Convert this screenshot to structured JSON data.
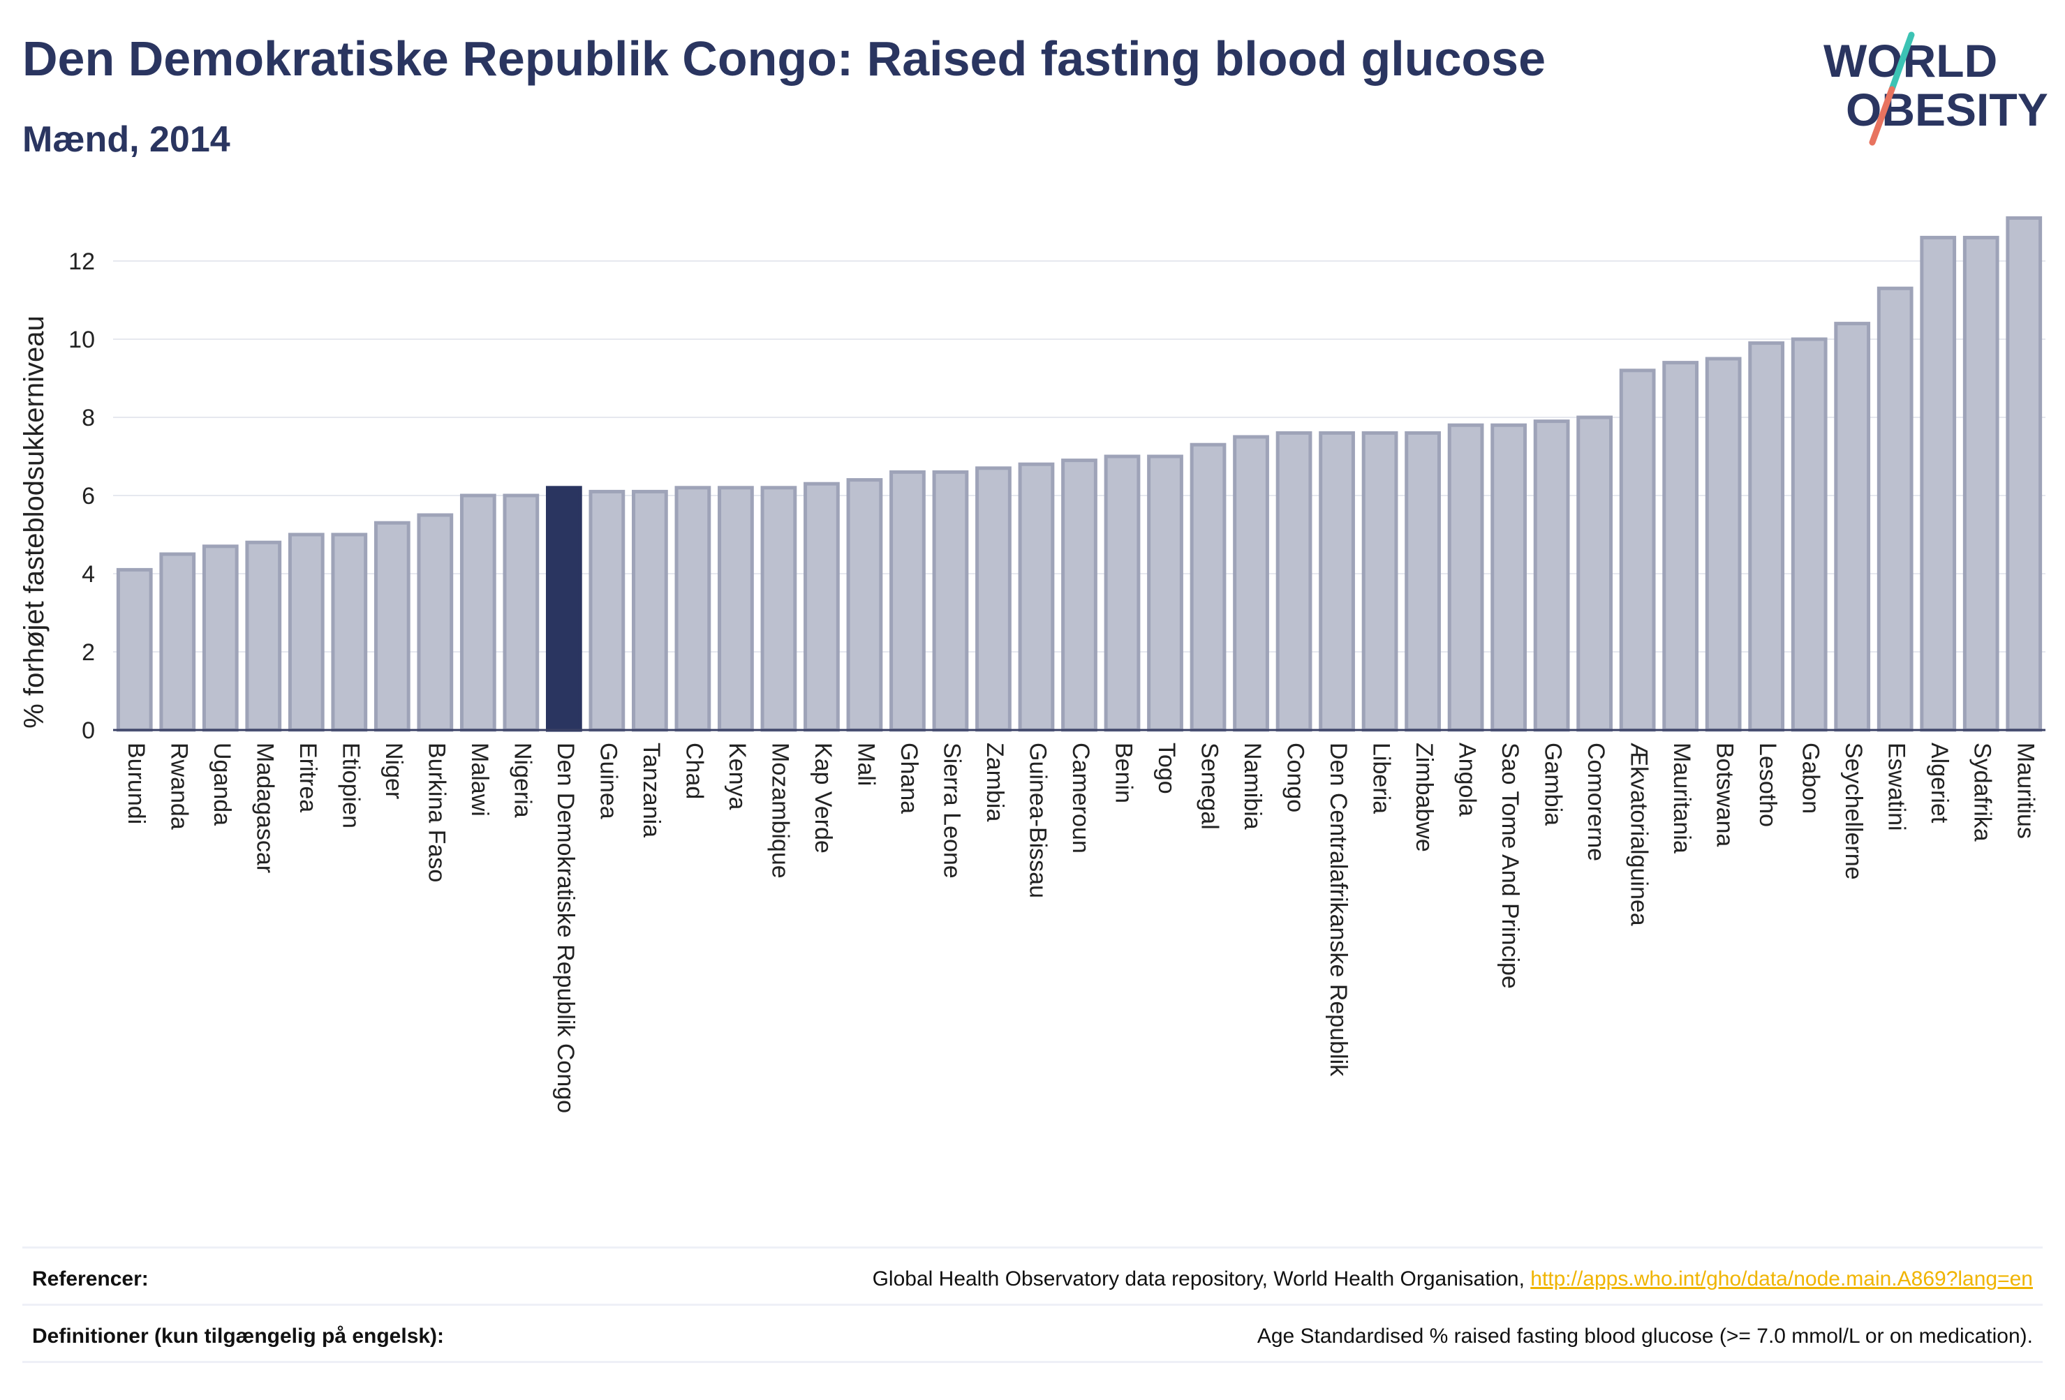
{
  "header": {
    "title": "Den Demokratiske Republik Congo: Raised fasting blood glucose",
    "subtitle": "Mænd, 2014",
    "logo_line1": "WORLD",
    "logo_line2": "OBESITY"
  },
  "colors": {
    "title": "#2a3560",
    "bar_default": "#bcc0cf",
    "bar_stroke": "#9ea3b8",
    "bar_highlight": "#2a3560",
    "link": "#f0b400",
    "logo_teal": "#3cc3b4",
    "logo_coral": "#e8735f"
  },
  "chart_data": {
    "type": "bar",
    "ylabel": "% forhøjet fasteblodsukkerniveau",
    "xlabel": "",
    "ylim": [
      0,
      13.5
    ],
    "yticks": [
      0,
      2,
      4,
      6,
      8,
      10,
      12
    ],
    "grid": true,
    "highlight": "Den Demokratiske Republik Congo",
    "categories": [
      "Burundi",
      "Rwanda",
      "Uganda",
      "Madagascar",
      "Eritrea",
      "Etiopien",
      "Niger",
      "Burkina Faso",
      "Malawi",
      "Nigeria",
      "Den Demokratiske Republik Congo",
      "Guinea",
      "Tanzania",
      "Chad",
      "Kenya",
      "Mozambique",
      "Kap Verde",
      "Mali",
      "Ghana",
      "Sierra Leone",
      "Zambia",
      "Guinea-Bissau",
      "Cameroun",
      "Benin",
      "Togo",
      "Senegal",
      "Namibia",
      "Congo",
      "Den Centralafrikanske Republik",
      "Liberia",
      "Zimbabwe",
      "Angola",
      "Sao Tome And Principe",
      "Gambia",
      "Comorerne",
      "Ækvatorialguinea",
      "Mauritania",
      "Botswana",
      "Lesotho",
      "Gabon",
      "Seychellerne",
      "Eswatini",
      "Algeriet",
      "Sydafrika",
      "Mauritius"
    ],
    "values": [
      4.1,
      4.5,
      4.7,
      4.8,
      5.0,
      5.0,
      5.3,
      5.5,
      6.0,
      6.0,
      6.2,
      6.1,
      6.1,
      6.2,
      6.2,
      6.2,
      6.3,
      6.4,
      6.6,
      6.6,
      6.7,
      6.8,
      6.9,
      7.0,
      7.0,
      7.3,
      7.5,
      7.6,
      7.6,
      7.6,
      7.6,
      7.8,
      7.8,
      7.9,
      8.0,
      9.2,
      9.4,
      9.5,
      9.9,
      10.0,
      10.4,
      11.3,
      12.6,
      12.6,
      13.1
    ]
  },
  "footer": {
    "references_label": "Referencer:",
    "references_text": "Global Health Observatory data repository, World Health Organisation, ",
    "references_link": "http://apps.who.int/gho/data/node.main.A869?lang=en",
    "definitions_label": "Definitioner (kun tilgængelig på engelsk):",
    "definitions_text": "Age Standardised % raised fasting blood glucose (>= 7.0 mmol/L or on medication)."
  }
}
